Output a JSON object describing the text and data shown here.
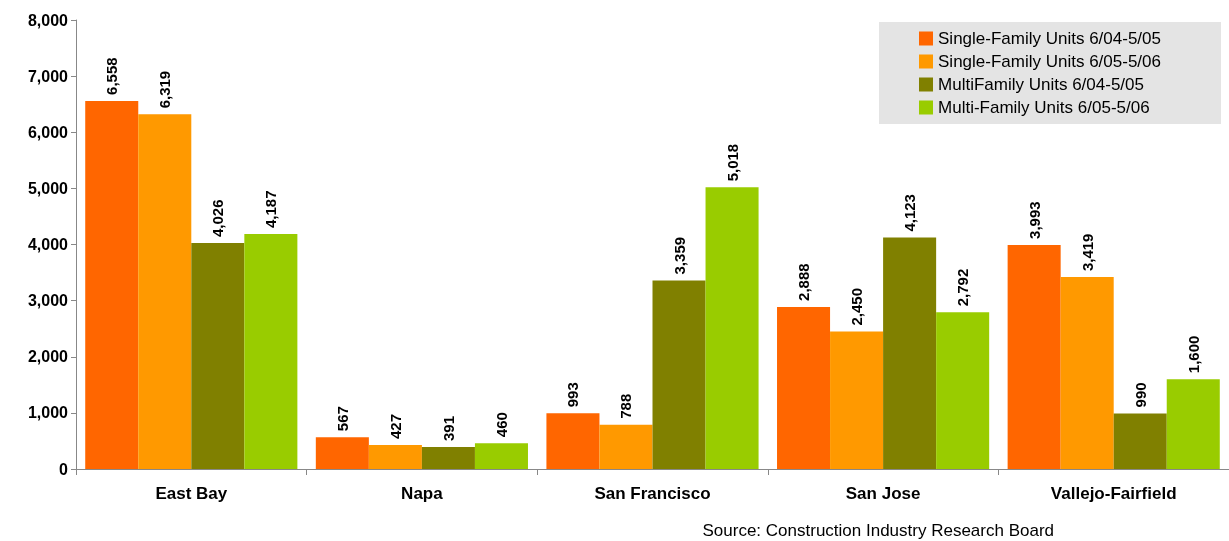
{
  "chart_data": {
    "type": "bar",
    "categories": [
      "East Bay",
      "Napa",
      "San Francisco",
      "San Jose",
      "Vallejo-Fairfield"
    ],
    "series": [
      {
        "name": "Single-Family Units 6/04-5/05",
        "color": "#ff6600",
        "values": [
          6558,
          567,
          993,
          2888,
          3993
        ],
        "value_labels": [
          "6,558",
          "567",
          "993",
          "2,888",
          "3,993"
        ]
      },
      {
        "name": "Single-Family Units 6/05-5/06",
        "color": "#ff9900",
        "values": [
          6319,
          427,
          788,
          2450,
          3419
        ],
        "value_labels": [
          "6,319",
          "427",
          "788",
          "2,450",
          "3,419"
        ]
      },
      {
        "name": "MultiFamily Units 6/04-5/05",
        "color": "#808000",
        "values": [
          4026,
          391,
          3359,
          4123,
          990
        ],
        "value_labels": [
          "4,026",
          "391",
          "3,359",
          "4,123",
          "990"
        ]
      },
      {
        "name": "Multi-Family Units 6/05-5/06",
        "color": "#99cc00",
        "values": [
          4187,
          460,
          5018,
          2792,
          1600
        ],
        "value_labels": [
          "4,187",
          "460",
          "5,018",
          "2,792",
          "1,600"
        ]
      }
    ],
    "ylim": [
      0,
      8000
    ],
    "yticks": [
      0,
      {
        "value": 1000,
        "label": "1,000"
      },
      {
        "value": 2000,
        "label": "2,000"
      },
      {
        "value": 3000,
        "label": "3,000"
      },
      {
        "value": 4000,
        "label": "4,000"
      },
      {
        "value": 5000,
        "label": "5,000"
      },
      {
        "value": 6000,
        "label": "6,000"
      },
      {
        "value": 7000,
        "label": "7,000"
      },
      {
        "value": 8000,
        "label": "8,000"
      }
    ],
    "grid": false,
    "legend": "top right",
    "annotations": [
      "Source: Construction Industry Research Board"
    ]
  }
}
